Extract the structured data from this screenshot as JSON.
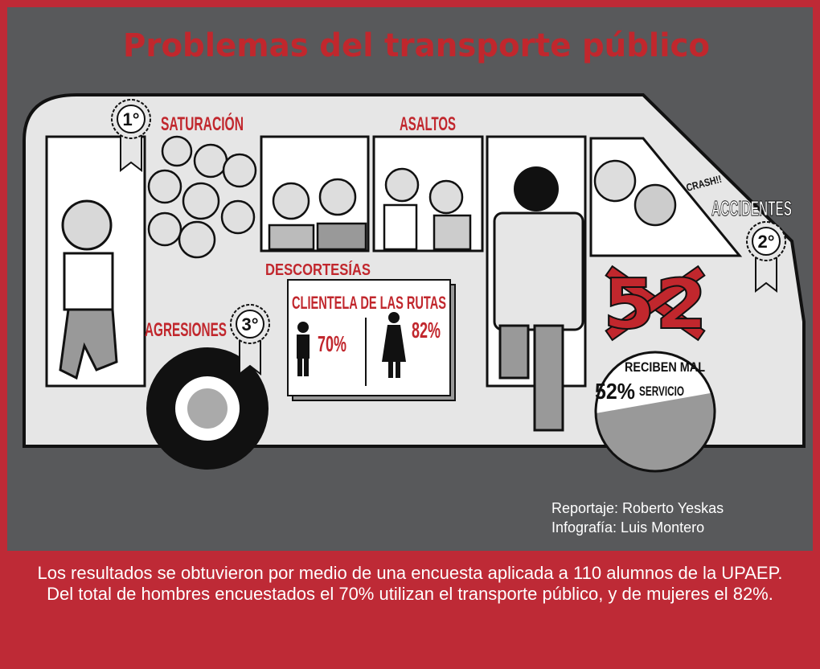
{
  "header": {
    "title": "Problemas del transporte público"
  },
  "labels": {
    "first": "1°",
    "saturation": "SATURACIÓN",
    "robberies": "ASALTOS",
    "crash": "CRASH!!",
    "accidents": "ACCIDENTES",
    "second": "2°",
    "rudeness": "DESCORTESÍAS",
    "aggressions": "AGRESIONES",
    "third": "3°"
  },
  "clientele": {
    "title": "CLIENTELA DE LAS RUTAS",
    "men": "70%",
    "women": "82%"
  },
  "service": {
    "number": "52",
    "line1": "RECIBEN MAL",
    "percent": "52%",
    "line2": "SERVICIO"
  },
  "credits": [
    "Reportaje: Roberto Yeskas",
    "Infografía: Luis Montero"
  ],
  "footer": [
    "Los resultados se obtuvieron por medio de una encuesta aplicada a 110 alumnos de la UPAEP.",
    "Del total de hombres encuestados el 70% utilizan el transporte público, y de mujeres el 82%."
  ]
}
